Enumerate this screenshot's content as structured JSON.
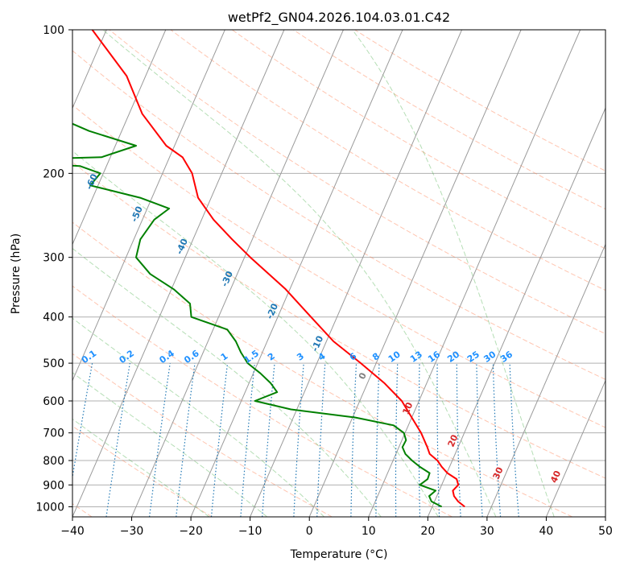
{
  "chart_data": {
    "type": "line",
    "title": "wetPf2_GN04.2026.104.03.01.C42",
    "xlabel": "Temperature (°C)",
    "ylabel": "Pressure (hPa)",
    "xlim": [
      -40,
      50
    ],
    "ylim": [
      1050,
      100
    ],
    "x_ticks": [
      -40,
      -30,
      -20,
      -10,
      0,
      10,
      20,
      30,
      40,
      50
    ],
    "y_ticks": [
      100,
      200,
      300,
      400,
      500,
      600,
      700,
      800,
      900,
      1000
    ],
    "skew_deg_per_decade": 35,
    "isotherms_c": [
      -100,
      -90,
      -80,
      -70,
      -60,
      -50,
      -40,
      -30,
      -20,
      -10,
      0,
      10,
      20,
      30,
      40
    ],
    "isotherm_label_color": "#1f77b4",
    "warm_isotherm_label_color": "#d62728",
    "mixing_ratios_gkg": [
      0.1,
      0.2,
      0.4,
      0.6,
      1,
      1.5,
      2,
      3,
      4,
      6,
      8,
      10,
      13,
      16,
      20,
      25,
      30,
      36
    ],
    "mixing_ratio_label_pressure": 500,
    "dry_adiabats_theta_c": [
      -40,
      -20,
      0,
      20,
      40,
      60,
      80,
      100,
      120,
      140,
      160,
      180,
      200
    ],
    "moist_adiabats_start_c": [
      -20,
      -10,
      0,
      10,
      20,
      30,
      40
    ],
    "series": [
      {
        "name": "Temperature",
        "color": "#ff0000",
        "points": [
          [
            1000,
            25.5
          ],
          [
            975,
            24.0
          ],
          [
            950,
            22.9
          ],
          [
            925,
            22.3
          ],
          [
            900,
            22.8
          ],
          [
            875,
            22.1
          ],
          [
            850,
            20.1
          ],
          [
            825,
            18.7
          ],
          [
            800,
            17.5
          ],
          [
            775,
            15.7
          ],
          [
            750,
            14.8
          ],
          [
            700,
            12.7
          ],
          [
            650,
            10.0
          ],
          [
            600,
            7.1
          ],
          [
            550,
            2.8
          ],
          [
            500,
            -2.6
          ],
          [
            450,
            -8.8
          ],
          [
            400,
            -14.4
          ],
          [
            350,
            -20.7
          ],
          [
            300,
            -29.0
          ],
          [
            275,
            -33.4
          ],
          [
            250,
            -38.0
          ],
          [
            225,
            -42.2
          ],
          [
            200,
            -45.0
          ],
          [
            185,
            -47.8
          ],
          [
            175,
            -51.4
          ],
          [
            150,
            -57.8
          ],
          [
            125,
            -63.2
          ],
          [
            100,
            -72.4
          ]
        ]
      },
      {
        "name": "Dewpoint",
        "color": "#008000",
        "points": [
          [
            1000,
            21.6
          ],
          [
            975,
            19.5
          ],
          [
            950,
            18.7
          ],
          [
            925,
            19.4
          ],
          [
            900,
            16.3
          ],
          [
            875,
            17.2
          ],
          [
            850,
            17.1
          ],
          [
            825,
            15.0
          ],
          [
            800,
            13.2
          ],
          [
            775,
            11.6
          ],
          [
            750,
            10.6
          ],
          [
            725,
            10.7
          ],
          [
            700,
            9.8
          ],
          [
            675,
            7.5
          ],
          [
            650,
            0.5
          ],
          [
            625,
            -11.0
          ],
          [
            600,
            -17.7
          ],
          [
            575,
            -14.6
          ],
          [
            550,
            -16.4
          ],
          [
            525,
            -18.8
          ],
          [
            500,
            -21.7
          ],
          [
            475,
            -23.6
          ],
          [
            450,
            -25.3
          ],
          [
            425,
            -27.6
          ],
          [
            400,
            -34.6
          ],
          [
            375,
            -35.8
          ],
          [
            350,
            -39.6
          ],
          [
            325,
            -44.7
          ],
          [
            300,
            -48.3
          ],
          [
            275,
            -48.9
          ],
          [
            250,
            -48.0
          ],
          [
            237,
            -46.3
          ],
          [
            225,
            -52.0
          ],
          [
            212,
            -61.3
          ],
          [
            200,
            -60.5
          ],
          [
            193,
            -64.5
          ],
          [
            188,
            -82.2
          ],
          [
            185,
            -61.5
          ],
          [
            175,
            -56.5
          ],
          [
            163,
            -65.5
          ],
          [
            150,
            -73.5
          ],
          [
            138,
            -79.3
          ],
          [
            125,
            -82.5
          ],
          [
            112,
            -83.0
          ],
          [
            100,
            -87.5
          ]
        ]
      }
    ]
  }
}
